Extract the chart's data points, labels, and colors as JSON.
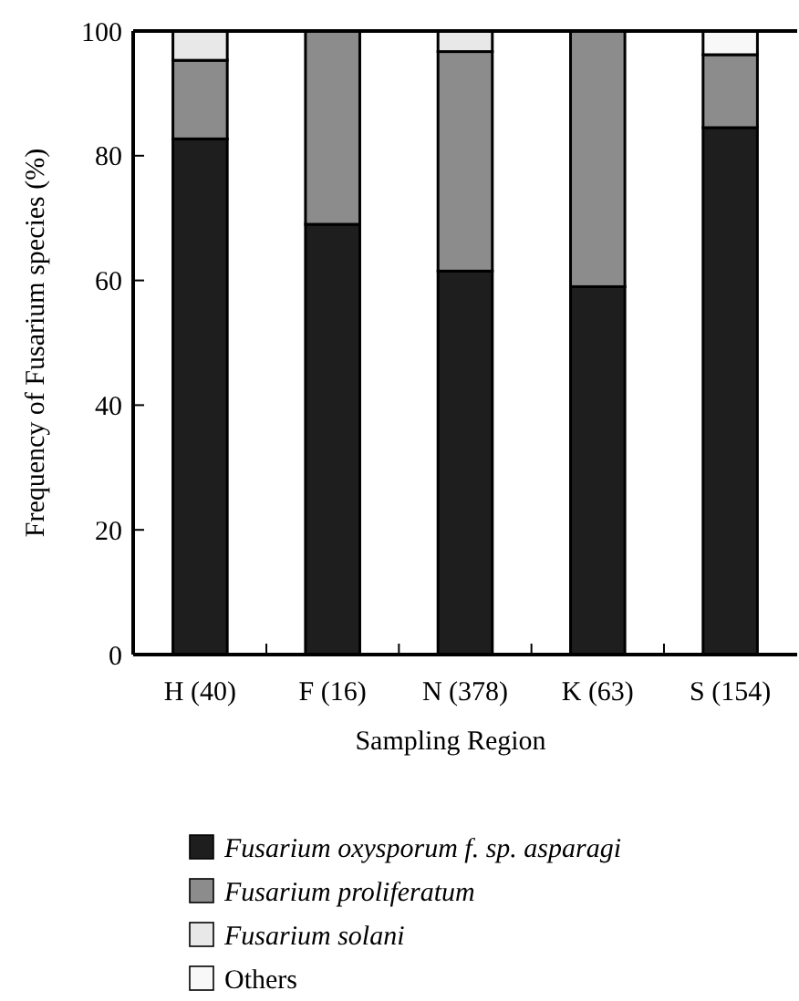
{
  "chart_data": {
    "type": "bar",
    "stacked": true,
    "xlabel": "Sampling Region",
    "ylabel": "Frequency of Fusarium species (%)",
    "categories": [
      "H (40)",
      "F (16)",
      "N (378)",
      "K (63)",
      "S (154)"
    ],
    "ylim": [
      0,
      100
    ],
    "yticks": [
      0,
      20,
      40,
      60,
      80,
      100
    ],
    "legend": "bottom",
    "series": [
      {
        "name": "Fusarium oxysporum f. sp. asparagi",
        "color": "#1e1e1e",
        "values": [
          82.7,
          69,
          61.5,
          59,
          84.5
        ]
      },
      {
        "name": "Fusarium proliferatum",
        "color": "#8c8c8c",
        "values": [
          12.6,
          31,
          35.2,
          41,
          11.7
        ]
      },
      {
        "name": "Fusarium solani",
        "color": "#e8e8e8",
        "values": [
          4.7,
          0,
          3.3,
          0,
          0
        ]
      },
      {
        "name": "Others",
        "color": "#f8f8f8",
        "values": [
          0,
          0,
          0,
          0,
          3.8
        ]
      }
    ]
  }
}
